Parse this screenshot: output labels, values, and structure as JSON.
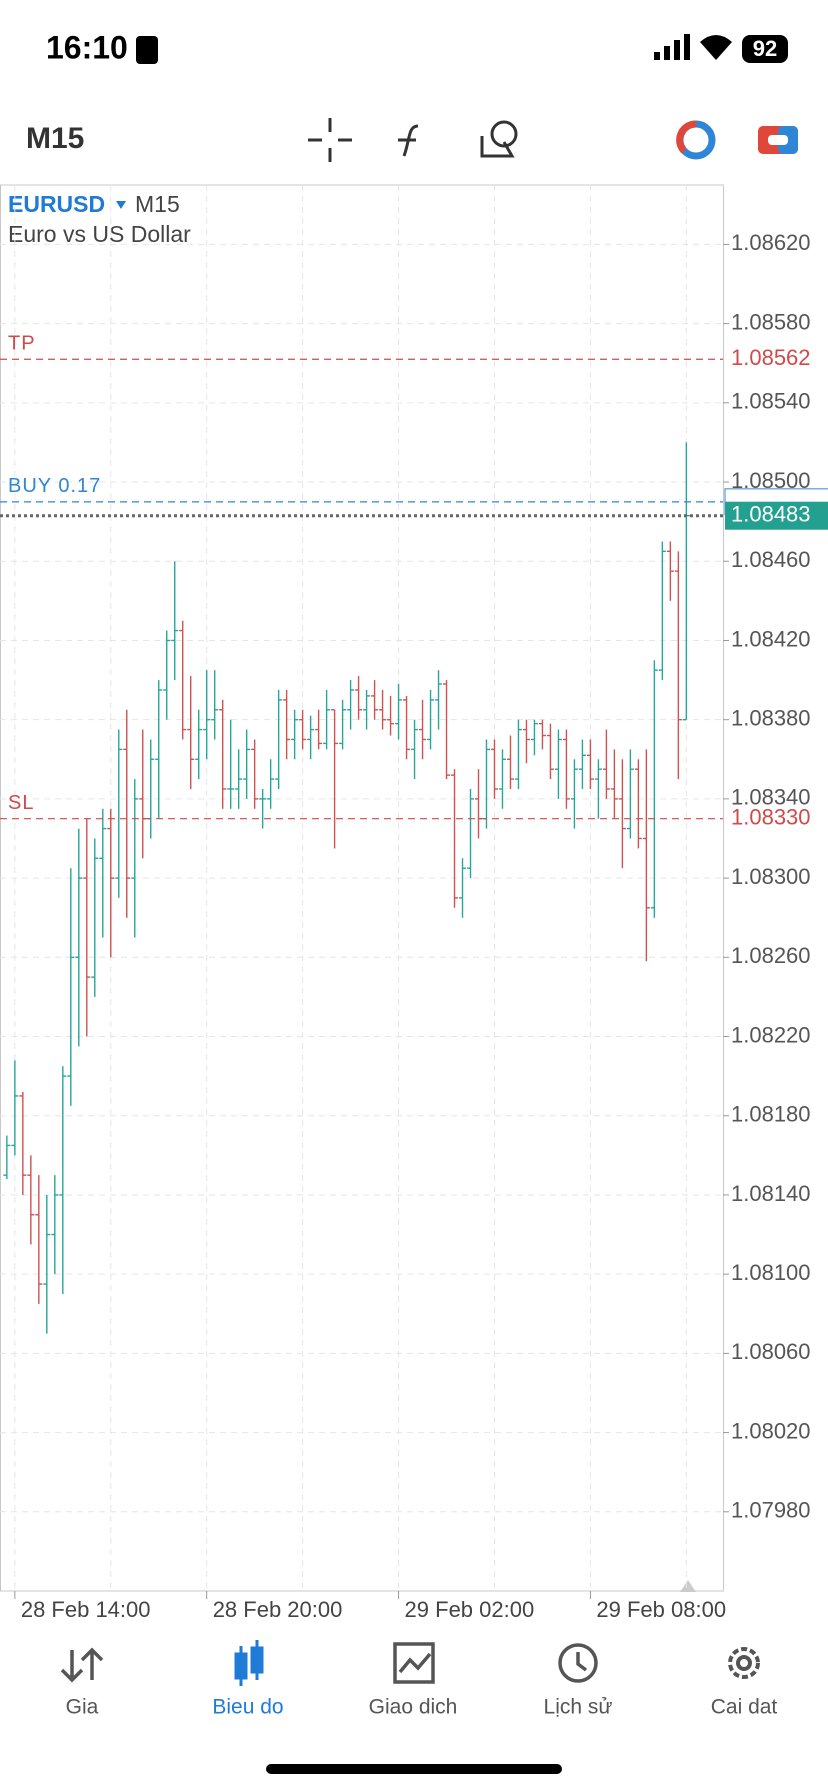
{
  "status_bar": {
    "time": "16:10",
    "battery": "92"
  },
  "toolbar": {
    "period": "M15"
  },
  "chart_data": {
    "type": "ohlc",
    "symbol": "EURUSD",
    "period": "M15",
    "description": "Euro vs US Dollar",
    "up_color": "#26a69a",
    "down_color": "#cf5151",
    "grid": true,
    "ylim": [
      1.0794,
      1.0865
    ],
    "yticks": [
      {
        "value": 1.0798,
        "label": "1.07980"
      },
      {
        "value": 1.0802,
        "label": "1.08020"
      },
      {
        "value": 1.0806,
        "label": "1.08060"
      },
      {
        "value": 1.081,
        "label": "1.08100"
      },
      {
        "value": 1.0814,
        "label": "1.08140"
      },
      {
        "value": 1.0818,
        "label": "1.08180"
      },
      {
        "value": 1.0822,
        "label": "1.08220"
      },
      {
        "value": 1.0826,
        "label": "1.08260"
      },
      {
        "value": 1.083,
        "label": "1.08300"
      },
      {
        "value": 1.0834,
        "label": "1.08340"
      },
      {
        "value": 1.0838,
        "label": "1.08380"
      },
      {
        "value": 1.0842,
        "label": "1.08420"
      },
      {
        "value": 1.0846,
        "label": "1.08460"
      },
      {
        "value": 1.085,
        "label": "1.08500"
      },
      {
        "value": 1.0854,
        "label": "1.08540"
      },
      {
        "value": 1.0858,
        "label": "1.08580"
      },
      {
        "value": 1.0862,
        "label": "1.08620"
      }
    ],
    "categories": [
      null,
      "28 Feb 14:00",
      null,
      null,
      null,
      null,
      null,
      null,
      null,
      null,
      null,
      null,
      null,
      null,
      null,
      null,
      null,
      null,
      null,
      null,
      null,
      null,
      null,
      null,
      null,
      "28 Feb 20:00",
      null,
      null,
      null,
      null,
      null,
      null,
      null,
      null,
      null,
      null,
      null,
      null,
      null,
      null,
      null,
      null,
      null,
      null,
      null,
      null,
      null,
      null,
      null,
      "29 Feb 02:00",
      null,
      null,
      null,
      null,
      null,
      null,
      null,
      null,
      null,
      null,
      null,
      null,
      null,
      null,
      null,
      null,
      null,
      null,
      null,
      null,
      null,
      null,
      null,
      "29 Feb 08:00",
      null,
      null,
      null,
      null,
      null,
      null,
      null,
      null,
      null,
      null,
      null,
      null
    ],
    "open": [
      1.0815,
      1.08165,
      1.0819,
      1.0815,
      1.0813,
      1.08095,
      1.0812,
      1.0814,
      1.082,
      1.0826,
      1.083,
      1.0825,
      1.0831,
      1.08325,
      1.083,
      1.08365,
      1.083,
      1.0834,
      1.0833,
      1.0836,
      1.08395,
      1.0842,
      1.08425,
      1.08375,
      1.0836,
      1.08375,
      1.0838,
      1.08385,
      1.08345,
      1.08345,
      1.0835,
      1.08365,
      1.0834,
      1.0834,
      1.0835,
      1.0839,
      1.0837,
      1.0838,
      1.0837,
      1.08375,
      1.08368,
      1.08385,
      1.08368,
      1.08385,
      1.08395,
      1.08385,
      1.08392,
      1.08385,
      1.0838,
      1.08378,
      1.0839,
      1.08365,
      1.08375,
      1.0837,
      1.0839,
      1.08398,
      1.08352,
      1.0829,
      1.08305,
      1.0834,
      1.0833,
      1.08365,
      1.08345,
      1.0836,
      1.0835,
      1.08375,
      1.0837,
      1.08378,
      1.08372,
      1.08355,
      1.0837,
      1.0834,
      1.08355,
      1.08362,
      1.0835,
      1.08355,
      1.08345,
      1.0834,
      1.08325,
      1.08355,
      1.0832,
      1.08285,
      1.08405,
      1.08465,
      1.08455,
      1.0838
    ],
    "high": [
      1.0817,
      1.08208,
      1.08192,
      1.0816,
      1.0815,
      1.0814,
      1.0815,
      1.08205,
      1.08305,
      1.08325,
      1.0833,
      1.0832,
      1.08335,
      1.08335,
      1.08375,
      1.08385,
      1.0835,
      1.08375,
      1.0837,
      1.084,
      1.08425,
      1.0846,
      1.0843,
      1.08402,
      1.08385,
      1.08405,
      1.08405,
      1.0839,
      1.0838,
      1.08365,
      1.08375,
      1.0837,
      1.08345,
      1.0836,
      1.08395,
      1.08395,
      1.08385,
      1.08385,
      1.08382,
      1.08385,
      1.08395,
      1.08385,
      1.0839,
      1.084,
      1.08402,
      1.08395,
      1.084,
      1.08395,
      1.08392,
      1.08398,
      1.08392,
      1.0838,
      1.0839,
      1.08395,
      1.08405,
      1.084,
      1.08355,
      1.0831,
      1.08345,
      1.08355,
      1.0837,
      1.0837,
      1.08365,
      1.08372,
      1.0838,
      1.0838,
      1.0838,
      1.0838,
      1.08378,
      1.08375,
      1.08375,
      1.0836,
      1.0837,
      1.0837,
      1.0836,
      1.08375,
      1.08365,
      1.0836,
      1.08365,
      1.0836,
      1.08365,
      1.0841,
      1.0847,
      1.0847,
      1.08465,
      1.0852
    ],
    "low": [
      1.08148,
      1.0816,
      1.0814,
      1.08115,
      1.08085,
      1.0807,
      1.081,
      1.0809,
      1.08185,
      1.08215,
      1.0822,
      1.0824,
      1.0827,
      1.0826,
      1.0829,
      1.0828,
      1.0827,
      1.0831,
      1.0832,
      1.0833,
      1.0838,
      1.084,
      1.0837,
      1.08345,
      1.0835,
      1.0836,
      1.0837,
      1.08335,
      1.08335,
      1.08335,
      1.0834,
      1.08335,
      1.08325,
      1.08335,
      1.08345,
      1.0836,
      1.0836,
      1.08365,
      1.0836,
      1.08365,
      1.08365,
      1.08315,
      1.08365,
      1.08375,
      1.0838,
      1.08375,
      1.0838,
      1.08375,
      1.08372,
      1.0837,
      1.0836,
      1.0835,
      1.0836,
      1.08365,
      1.08375,
      1.0835,
      1.08285,
      1.0828,
      1.083,
      1.0832,
      1.08325,
      1.0834,
      1.08335,
      1.08345,
      1.08345,
      1.08358,
      1.08362,
      1.08365,
      1.0835,
      1.0834,
      1.08335,
      1.08325,
      1.08345,
      1.08345,
      1.0833,
      1.0834,
      1.0833,
      1.08305,
      1.0832,
      1.08315,
      1.08258,
      1.0828,
      1.084,
      1.0844,
      1.0835,
      1.0838
    ],
    "close": [
      1.08165,
      1.0819,
      1.0815,
      1.0813,
      1.08095,
      1.0812,
      1.0814,
      1.082,
      1.0826,
      1.083,
      1.0825,
      1.0831,
      1.08325,
      1.083,
      1.08365,
      1.083,
      1.0834,
      1.0833,
      1.0836,
      1.08395,
      1.0842,
      1.08425,
      1.08375,
      1.0836,
      1.08375,
      1.0838,
      1.08385,
      1.08345,
      1.08345,
      1.0835,
      1.08365,
      1.0834,
      1.0834,
      1.0835,
      1.0839,
      1.0837,
      1.0838,
      1.0837,
      1.08375,
      1.08368,
      1.08385,
      1.08368,
      1.08385,
      1.08395,
      1.08385,
      1.08392,
      1.08385,
      1.0838,
      1.08378,
      1.0839,
      1.08365,
      1.08375,
      1.0837,
      1.0839,
      1.08398,
      1.08352,
      1.0829,
      1.08305,
      1.0834,
      1.0833,
      1.08365,
      1.08345,
      1.0836,
      1.0835,
      1.08375,
      1.0837,
      1.08378,
      1.08372,
      1.08355,
      1.0837,
      1.0834,
      1.08355,
      1.08362,
      1.0835,
      1.08355,
      1.08345,
      1.0834,
      1.08325,
      1.08355,
      1.0832,
      1.08285,
      1.08405,
      1.08465,
      1.08455,
      1.0838,
      1.08483
    ],
    "levels": [
      {
        "label": "TP",
        "value": 1.08562,
        "value_label": "1.08562",
        "color": "#cf4a4a"
      },
      {
        "label": "BUY 0.17",
        "value": 1.0849,
        "color": "#2f86d6"
      },
      {
        "label": "SL",
        "value": 1.0833,
        "value_label": "1.08330",
        "color": "#cf4a4a"
      }
    ],
    "bid": {
      "value": 1.08483,
      "color": "#23a08f"
    }
  },
  "nav": {
    "items": [
      "Gia",
      "Bieu do",
      "Giao dich",
      "Lịch sử",
      "Cai dat"
    ],
    "active": 1
  }
}
